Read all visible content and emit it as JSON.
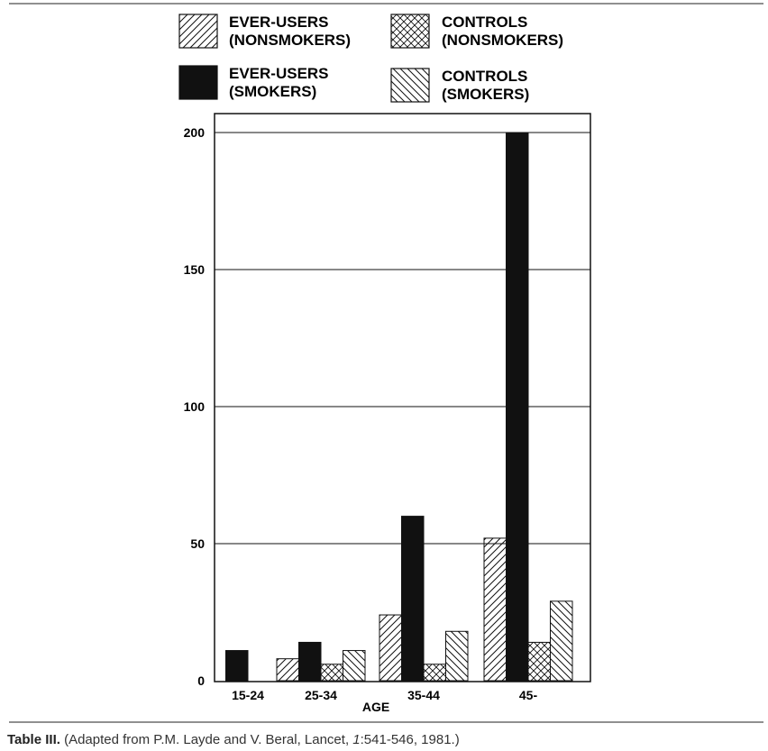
{
  "chart_data": {
    "type": "bar",
    "xlabel": "AGE",
    "ylabel": "",
    "ylim": [
      0,
      200
    ],
    "yticks": [
      0,
      50,
      100,
      150,
      200
    ],
    "grid": true,
    "legend_position": "top",
    "categories": [
      "15-24",
      "25-34",
      "35-44",
      "45-"
    ],
    "series": [
      {
        "name": "EVER-USERS\n(NONSMOKERS)",
        "legend_lines": [
          "EVER-USERS",
          "(NONSMOKERS)"
        ],
        "pattern": "diag-forward",
        "values": [
          0,
          8,
          24,
          52
        ]
      },
      {
        "name": "EVER-USERS\n(SMOKERS)",
        "legend_lines": [
          "EVER-USERS",
          "(SMOKERS)"
        ],
        "pattern": "solid-black",
        "values": [
          11,
          14,
          60,
          200
        ]
      },
      {
        "name": "CONTROLS\n(NONSMOKERS)",
        "legend_lines": [
          "CONTROLS",
          "(NONSMOKERS)"
        ],
        "pattern": "crosshatch",
        "values": [
          0,
          6,
          6,
          14
        ]
      },
      {
        "name": "CONTROLS\n(SMOKERS)",
        "legend_lines": [
          "CONTROLS",
          "(SMOKERS)"
        ],
        "pattern": "diag-backward",
        "values": [
          0,
          11,
          18,
          29
        ]
      }
    ],
    "colors": {
      "bar_fill": "#111111",
      "hatch": "#111111",
      "background": "#ffffff"
    }
  },
  "caption": {
    "label": "Table III.",
    "before_volume": "(Adapted from P.M. Layde and V. Beral, Lancet, ",
    "volume": "1",
    "after_volume": ":541-546, 1981.)"
  }
}
